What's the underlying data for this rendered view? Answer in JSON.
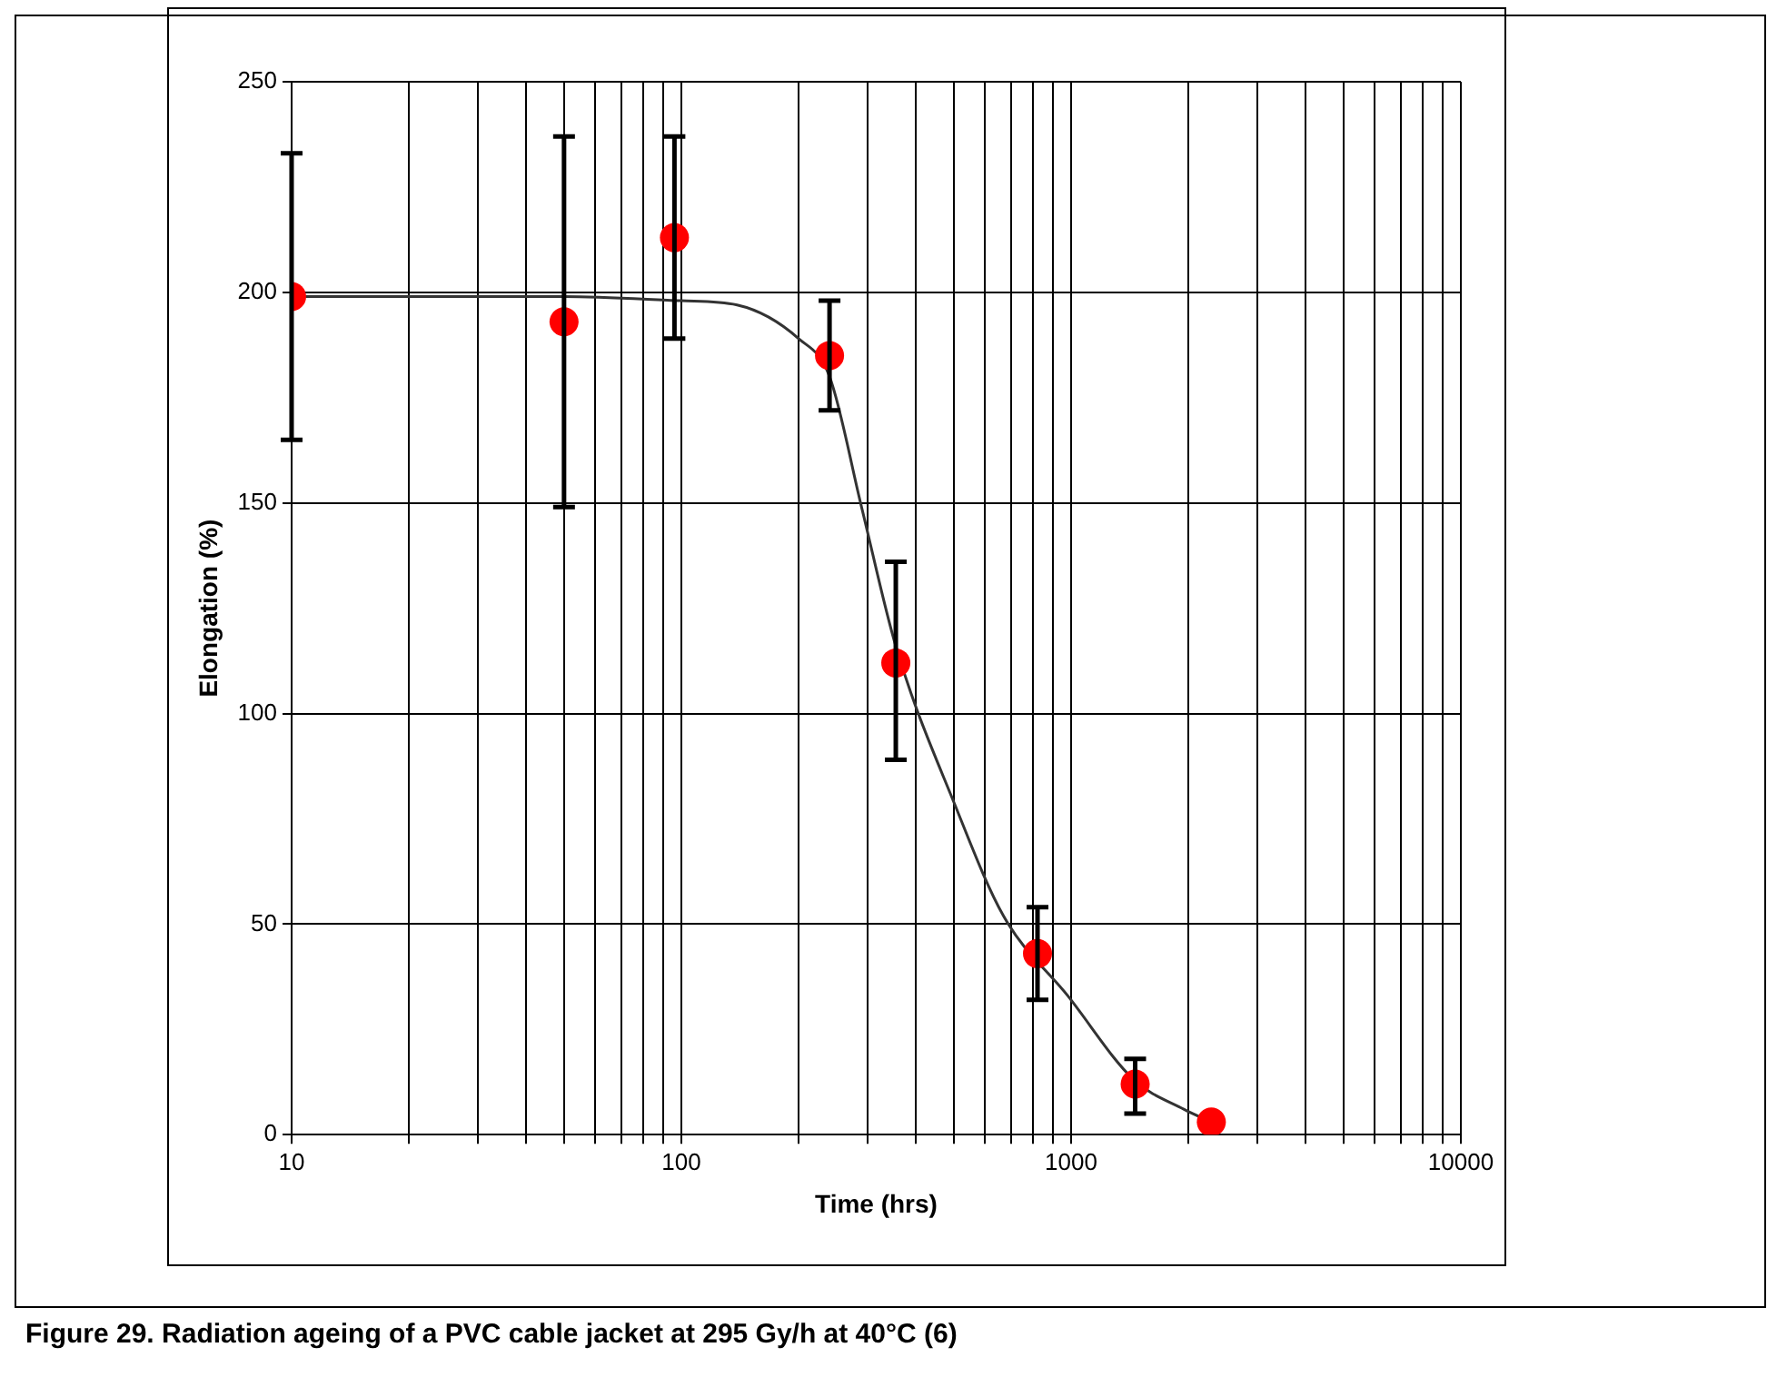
{
  "chart_data": {
    "type": "scatter",
    "xlabel": "Time (hrs)",
    "ylabel": "Elongation (%)",
    "annotations": [
      "Figure 29. Radiation ageing of a PVC cable jacket at 295 Gy/h at 40°C (6)"
    ],
    "log": "x",
    "grid": true,
    "legend": false,
    "xlim": [
      10,
      10000
    ],
    "xticks": [
      10,
      {
        "value": 20,
        "label": null
      },
      {
        "value": 30,
        "label": null
      },
      {
        "value": 40,
        "label": null
      },
      {
        "value": 50,
        "label": null
      },
      {
        "value": 60,
        "label": null
      },
      {
        "value": 70,
        "label": null
      },
      {
        "value": 80,
        "label": null
      },
      {
        "value": 90,
        "label": null
      },
      100,
      {
        "value": 200,
        "label": null
      },
      {
        "value": 300,
        "label": null
      },
      {
        "value": 400,
        "label": null
      },
      {
        "value": 500,
        "label": null
      },
      {
        "value": 600,
        "label": null
      },
      {
        "value": 700,
        "label": null
      },
      {
        "value": 800,
        "label": null
      },
      {
        "value": 900,
        "label": null
      },
      1000,
      {
        "value": 2000,
        "label": null
      },
      {
        "value": 3000,
        "label": null
      },
      {
        "value": 4000,
        "label": null
      },
      {
        "value": 5000,
        "label": null
      },
      {
        "value": 6000,
        "label": null
      },
      {
        "value": 7000,
        "label": null
      },
      {
        "value": 8000,
        "label": null
      },
      {
        "value": 9000,
        "label": null
      },
      {
        "value": 10000,
        "label": "10000"
      }
    ],
    "ylim": [
      0,
      250
    ],
    "yticks": [
      0,
      50,
      100,
      150,
      200,
      250
    ],
    "series": [
      {
        "color": "#ff0000",
        "marker": "circle",
        "x": [
          10,
          50,
          96,
          240,
          355,
          820,
          1460,
          2290
        ],
        "values": [
          199,
          193,
          213,
          185,
          112,
          43,
          12,
          3
        ],
        "errors": [
          [
            165,
            233
          ],
          [
            149,
            237
          ],
          [
            189,
            237
          ],
          [
            172,
            198
          ],
          [
            89,
            136
          ],
          [
            32,
            54
          ],
          [
            5,
            18
          ],
          null
        ]
      },
      {
        "type": "line",
        "color": "#333333",
        "marker": "none",
        "x": [
          10,
          50,
          100,
          139,
          200,
          240,
          290,
          355,
          505,
          670,
          980,
          1450,
          1950,
          2290
        ],
        "values": [
          199,
          199,
          198,
          197,
          189,
          180,
          149,
          116,
          78,
          52,
          33,
          13,
          6,
          3
        ]
      }
    ]
  }
}
